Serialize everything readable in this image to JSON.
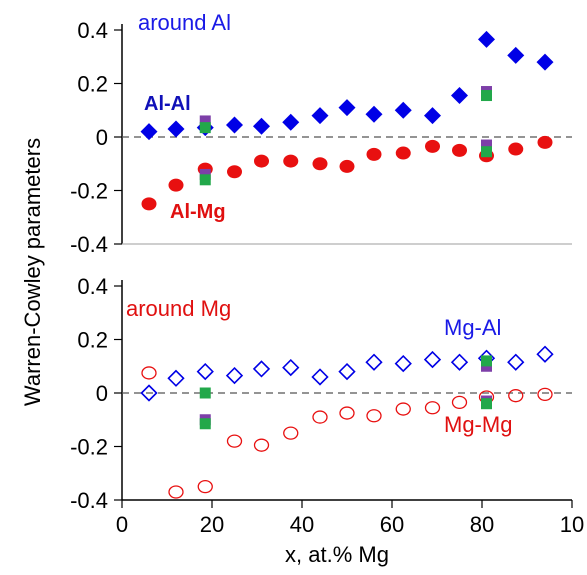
{
  "chart_data": [
    {
      "type": "scatter",
      "title": "around Al",
      "ylim": [
        -0.4,
        0.4
      ],
      "xlim": [
        0,
        100
      ],
      "yticks": [
        "-0.4",
        "-0.2",
        "0",
        "0.2",
        "0.4"
      ],
      "zero_line": true,
      "series": [
        {
          "name": "Al-Al",
          "marker": "filled-diamond",
          "color": "#0000e6",
          "x": [
            6,
            12,
            18.5,
            25,
            31,
            37.5,
            44,
            50,
            56,
            62.5,
            69,
            75,
            81,
            87.5,
            94
          ],
          "y": [
            0.02,
            0.03,
            0.035,
            0.045,
            0.04,
            0.055,
            0.08,
            0.11,
            0.085,
            0.1,
            0.08,
            0.155,
            0.365,
            0.305,
            0.28
          ]
        },
        {
          "name": "Al-Mg",
          "marker": "filled-circle",
          "color": "#e81010",
          "x": [
            6,
            12,
            18.5,
            25,
            31,
            37.5,
            44,
            50,
            56,
            62.5,
            69,
            75,
            81,
            87.5,
            94
          ],
          "y": [
            -0.25,
            -0.18,
            -0.12,
            -0.13,
            -0.09,
            -0.09,
            -0.1,
            -0.11,
            -0.065,
            -0.06,
            -0.035,
            -0.05,
            -0.07,
            -0.045,
            -0.02
          ]
        },
        {
          "name": "",
          "marker": "filled-square",
          "color": "#7d3fa8",
          "x": [
            18.5,
            18.5,
            81,
            81
          ],
          "y": [
            0.06,
            -0.14,
            0.17,
            -0.03
          ]
        },
        {
          "name": "",
          "marker": "filled-square",
          "color": "#22a84a",
          "x": [
            18.5,
            18.5,
            81,
            81
          ],
          "y": [
            0.035,
            -0.16,
            0.155,
            -0.055
          ]
        }
      ]
    },
    {
      "type": "scatter",
      "title": "around Mg",
      "ylim": [
        -0.4,
        0.4
      ],
      "xlim": [
        0,
        100
      ],
      "yticks": [
        "-0.4",
        "-0.2",
        "0",
        "0.2",
        "0.4"
      ],
      "xticks": [
        "0",
        "20",
        "40",
        "60",
        "80",
        "10"
      ],
      "xlabel": "x, at.% Mg",
      "zero_line": true,
      "series": [
        {
          "name": "Mg-Al",
          "marker": "open-diamond",
          "color": "#0000e6",
          "x": [
            6,
            12,
            18.5,
            25,
            31,
            37.5,
            44,
            50,
            56,
            62.5,
            69,
            75,
            81,
            87.5,
            94
          ],
          "y": [
            0.0,
            0.055,
            0.08,
            0.065,
            0.09,
            0.095,
            0.06,
            0.08,
            0.115,
            0.11,
            0.125,
            0.115,
            0.13,
            0.115,
            0.145
          ]
        },
        {
          "name": "Mg-Mg",
          "marker": "open-circle",
          "color": "#e81010",
          "x": [
            6,
            12,
            18.5,
            25,
            31,
            37.5,
            44,
            50,
            56,
            62.5,
            69,
            75,
            81,
            87.5,
            94
          ],
          "y": [
            0.075,
            -0.37,
            -0.35,
            -0.18,
            -0.195,
            -0.15,
            -0.09,
            -0.075,
            -0.085,
            -0.06,
            -0.055,
            -0.035,
            -0.015,
            -0.01,
            -0.005
          ]
        },
        {
          "name": "",
          "marker": "filled-square",
          "color": "#7d3fa8",
          "x": [
            18.5,
            81,
            81
          ],
          "y": [
            -0.1,
            0.1,
            -0.03
          ]
        },
        {
          "name": "",
          "marker": "filled-square",
          "color": "#22a84a",
          "x": [
            18.5,
            18.5,
            81,
            81
          ],
          "y": [
            0.0,
            -0.115,
            0.12,
            -0.04
          ]
        }
      ]
    }
  ],
  "shared": {
    "ylabel": "Warren-Cowley parameters"
  }
}
